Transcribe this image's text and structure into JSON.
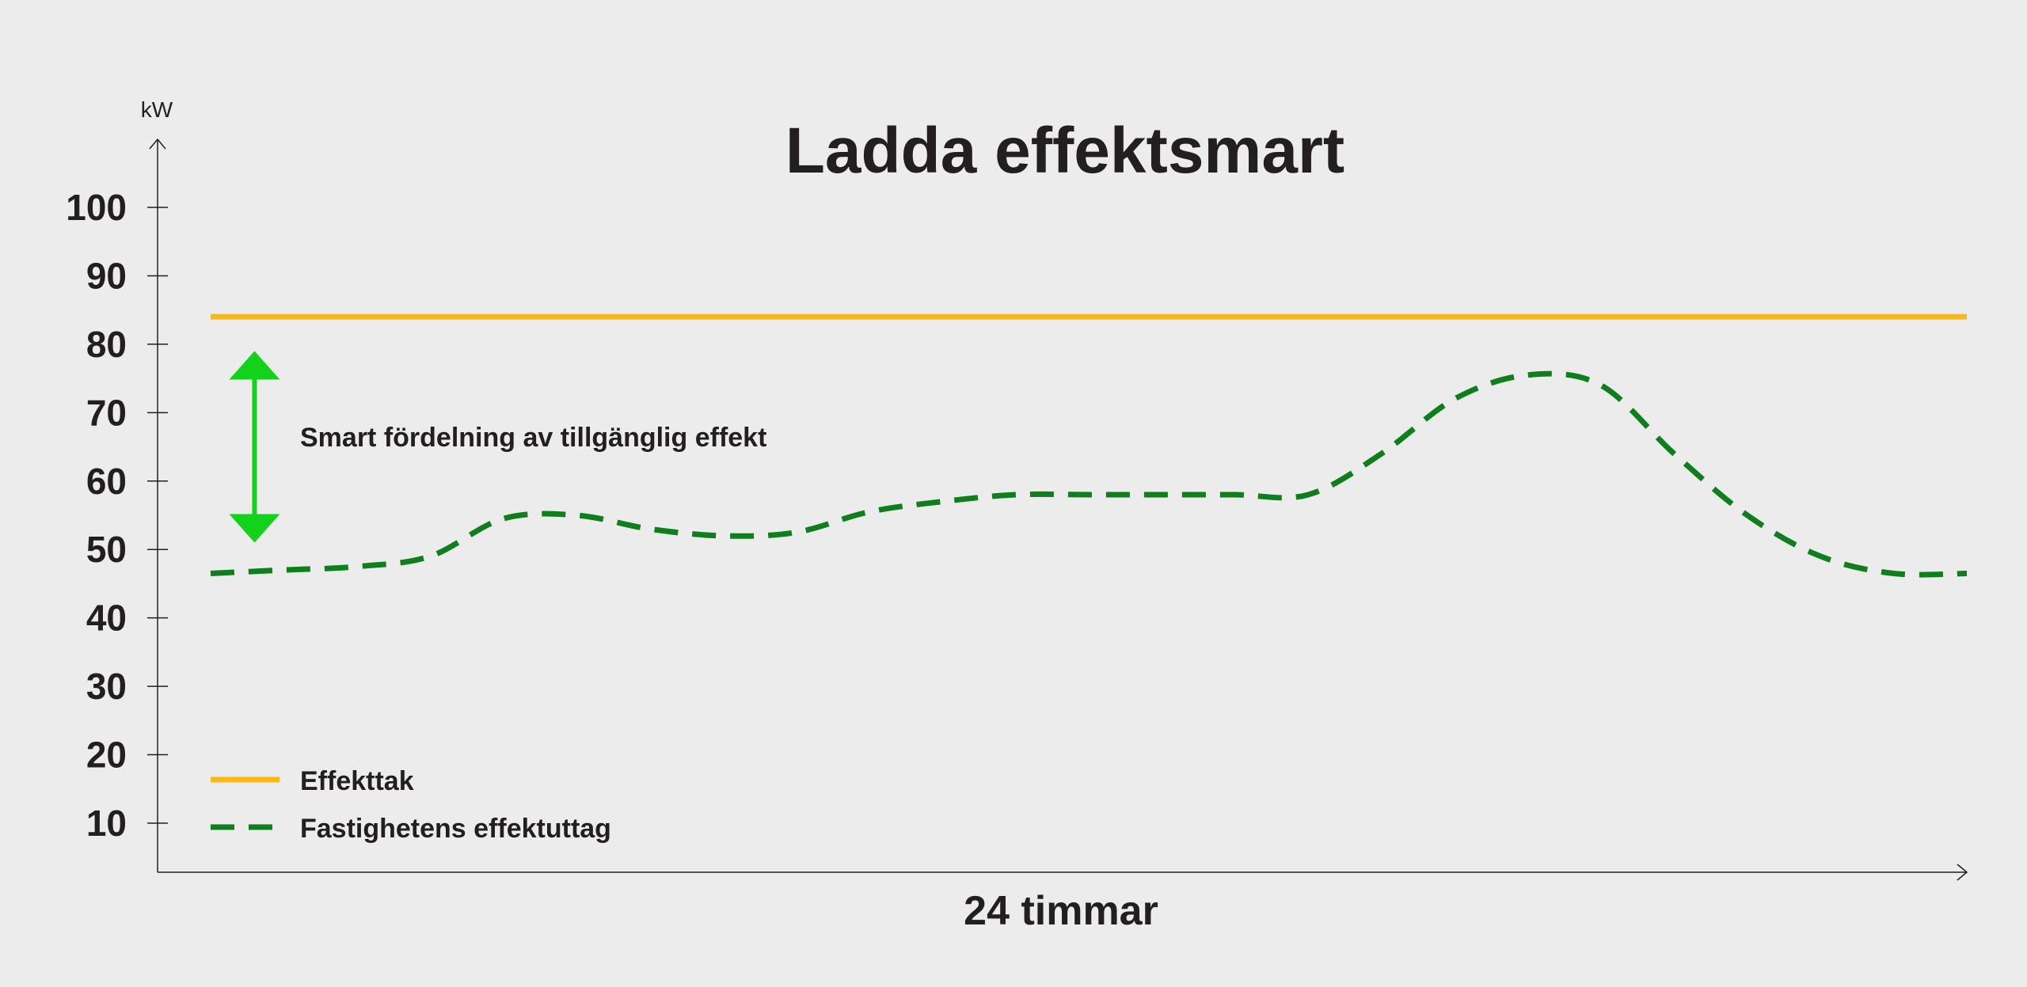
{
  "chart_data": {
    "type": "line",
    "title": "Ladda effektsmart",
    "xlabel": "24 timmar",
    "ylabel": "kW",
    "ylim": [
      0,
      110
    ],
    "xlim": [
      0,
      24
    ],
    "yticks": [
      10,
      20,
      30,
      40,
      50,
      60,
      70,
      80,
      90,
      100
    ],
    "grid": false,
    "legend_position": "bottom-left",
    "series": [
      {
        "name": "Effekttak",
        "style": "solid",
        "color": "#fbb814",
        "x": [
          0,
          24
        ],
        "values": [
          84,
          84
        ]
      },
      {
        "name": "Fastighetens effektuttag",
        "style": "dashed",
        "color": "#0f7f1e",
        "x": [
          0,
          1,
          2,
          3,
          4,
          5,
          6,
          7,
          8,
          9,
          10,
          11,
          12,
          13,
          14,
          15,
          16,
          17,
          18,
          19,
          20,
          21,
          22,
          23,
          24
        ],
        "values": [
          46.5,
          47,
          47.5,
          49,
          54.5,
          55,
          53,
          52,
          52.5,
          55.5,
          57,
          58,
          58,
          58,
          58,
          58,
          64,
          72,
          75.5,
          74,
          64,
          55,
          49,
          46.5,
          46.5
        ]
      }
    ],
    "annotations": [
      {
        "text": "Smart fördelning av tillgänglig effekt",
        "arrow_color": "#13d21c",
        "arrow_from_y": 51,
        "arrow_to_y": 79,
        "arrow_x": 0.6
      }
    ]
  }
}
